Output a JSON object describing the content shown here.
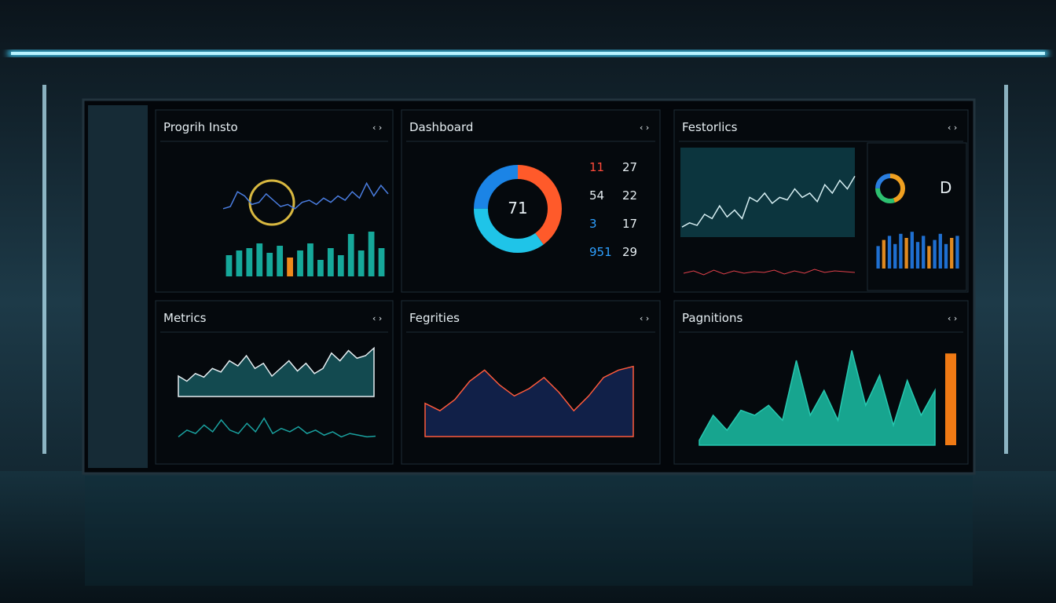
{
  "panels": [
    {
      "title": "Progrih Insto",
      "line": [
        30,
        35,
        70,
        60,
        40,
        45,
        65,
        50,
        35,
        40,
        30,
        45,
        50,
        40,
        55,
        45,
        60,
        50,
        70,
        55,
        90,
        60,
        85,
        65
      ],
      "bars": [
        45,
        55,
        60,
        70,
        50,
        65,
        40,
        55,
        70,
        35,
        60,
        45,
        90,
        55,
        95,
        60
      ]
    },
    {
      "title": "Dashboard",
      "donut": {
        "label": "71",
        "values": [
          40,
          35,
          25
        ]
      },
      "stats": [
        [
          "11",
          "27"
        ],
        [
          "54",
          "22"
        ],
        [
          "3",
          "17"
        ],
        [
          "951",
          "29"
        ]
      ]
    },
    {
      "title": "Festorlics",
      "area": [
        10,
        15,
        12,
        25,
        20,
        35,
        22,
        30,
        20,
        45,
        40,
        50,
        38,
        45,
        42,
        55,
        45,
        50,
        40,
        60,
        50,
        65,
        55,
        70
      ],
      "small_line": [
        40,
        55,
        30,
        60,
        35,
        55,
        40,
        50,
        45,
        60,
        35,
        55,
        40,
        65,
        45,
        55,
        50,
        45
      ],
      "mini_donut": [
        45,
        30,
        25
      ],
      "letter": "D",
      "bars": [
        55,
        70,
        80,
        60,
        85,
        75,
        90,
        65,
        80,
        55,
        70,
        85,
        60,
        75,
        80
      ]
    },
    {
      "title": "Metrics",
      "area": [
        40,
        30,
        45,
        38,
        55,
        48,
        70,
        60,
        80,
        55,
        65,
        40,
        55,
        70,
        50,
        65,
        45,
        55,
        85,
        70,
        90,
        75,
        80,
        95
      ],
      "line": [
        20,
        40,
        30,
        55,
        35,
        70,
        40,
        30,
        60,
        35,
        75,
        30,
        45,
        35,
        50,
        30,
        40,
        25,
        35,
        20,
        30,
        25,
        20,
        22
      ]
    },
    {
      "title": "Fegrities",
      "area": [
        45,
        35,
        50,
        75,
        90,
        70,
        55,
        65,
        80,
        60,
        35,
        55,
        80,
        90,
        95
      ]
    },
    {
      "title": "Pagnitions",
      "area": [
        5,
        30,
        15,
        35,
        30,
        40,
        25,
        85,
        30,
        55,
        25,
        95,
        40,
        70,
        20,
        65,
        30,
        55
      ],
      "highlight": 92
    }
  ]
}
